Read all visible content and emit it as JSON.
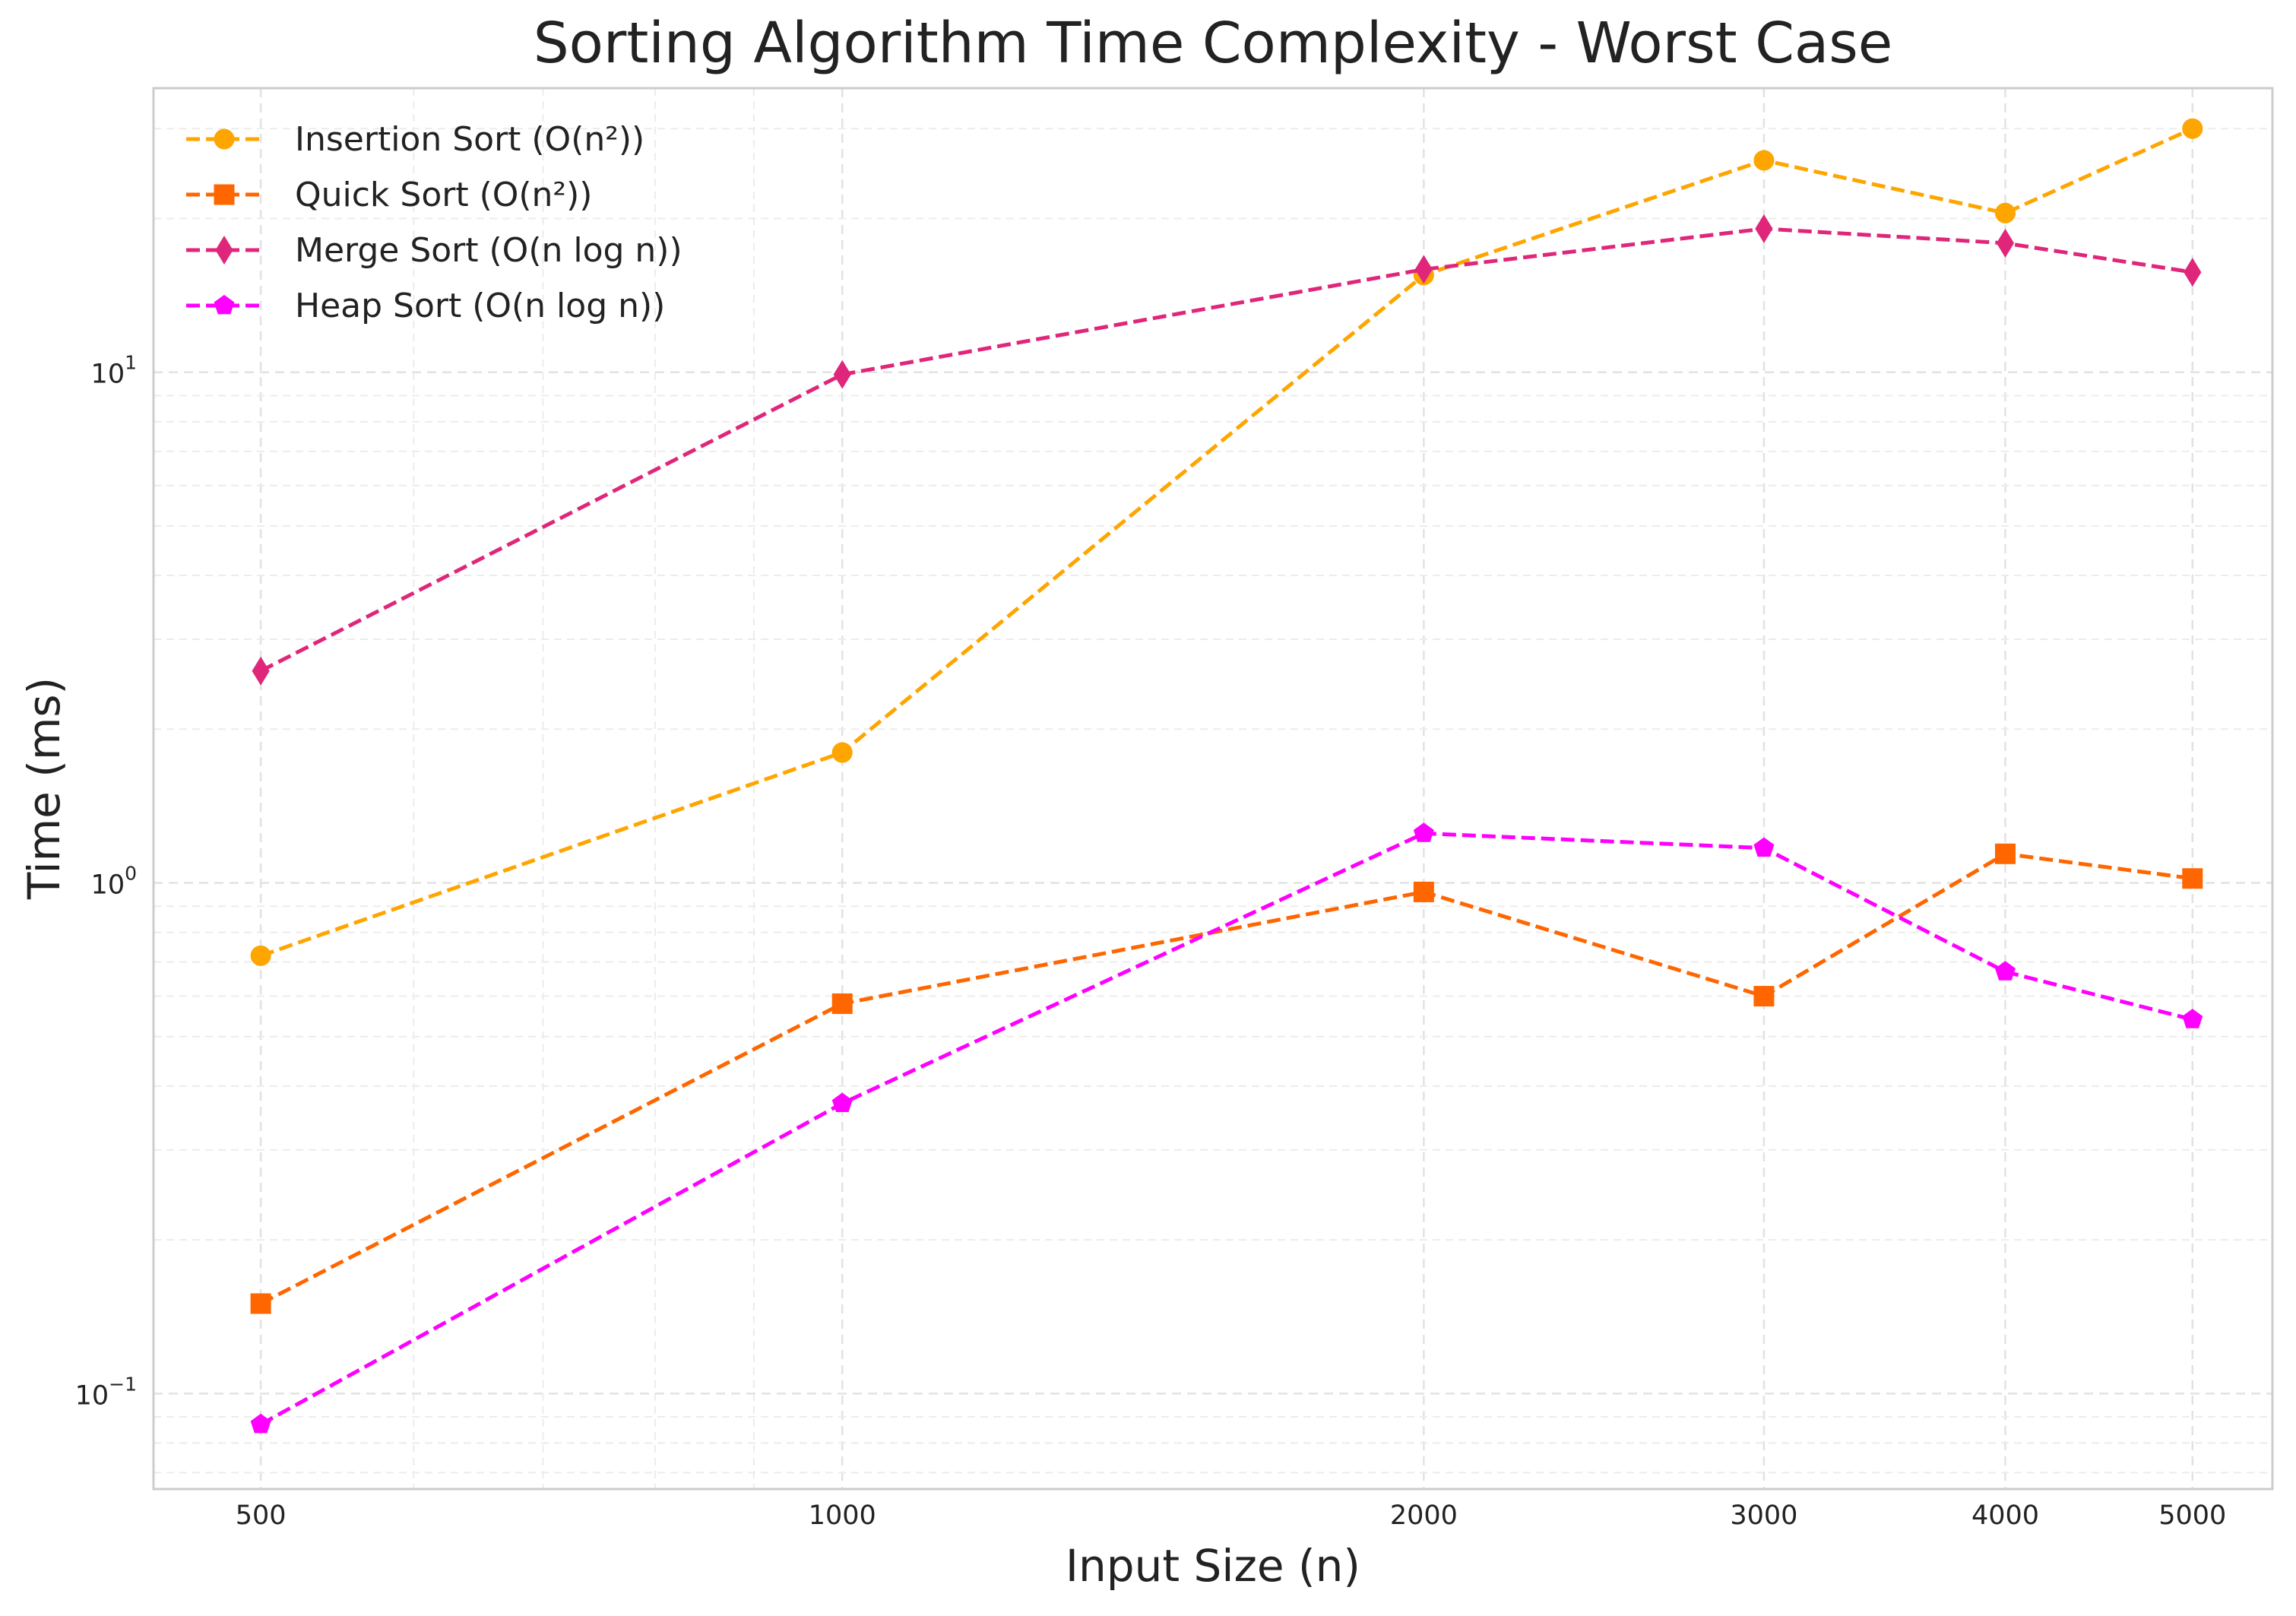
{
  "chart_data": {
    "type": "line",
    "title": "Sorting Algorithm Time Complexity - Worst Case",
    "xlabel": "Input Size (n)",
    "ylabel": "Time (ms)",
    "xscale": "log",
    "yscale": "log",
    "x": [
      500,
      1000,
      2000,
      3000,
      4000,
      5000
    ],
    "x_tick_labels": [
      "500",
      "1000",
      "2000",
      "3000",
      "4000",
      "5000"
    ],
    "y_tick_labels": [
      {
        "value": 0.1,
        "base": "10",
        "exp": "−1"
      },
      {
        "value": 1,
        "base": "10",
        "exp": "0"
      },
      {
        "value": 10,
        "base": "10",
        "exp": "1"
      }
    ],
    "xlim": [
      440,
      5500
    ],
    "ylim": [
      0.065,
      36
    ],
    "grid": true,
    "legend_position": "top-left",
    "series": [
      {
        "name": "Insertion Sort (O(n²))",
        "color": "#FFA500",
        "marker": "circle",
        "linestyle": "dashed",
        "values": [
          0.72,
          1.8,
          15.5,
          26.0,
          20.5,
          30.0
        ]
      },
      {
        "name": "Quick Sort (O(n²))",
        "color": "#FF6600",
        "marker": "square",
        "linestyle": "dashed",
        "values": [
          0.15,
          0.58,
          0.96,
          0.6,
          1.14,
          1.02
        ]
      },
      {
        "name": "Merge Sort (O(n log n))",
        "color": "#E0267A",
        "marker": "thin-diamond",
        "linestyle": "dashed",
        "values": [
          2.6,
          9.9,
          15.9,
          19.1,
          17.9,
          15.7
        ]
      },
      {
        "name": "Heap Sort (O(n log n))",
        "color": "#FF00FF",
        "marker": "pentagon",
        "linestyle": "dashed",
        "values": [
          0.087,
          0.37,
          1.25,
          1.17,
          0.67,
          0.54
        ]
      }
    ]
  }
}
